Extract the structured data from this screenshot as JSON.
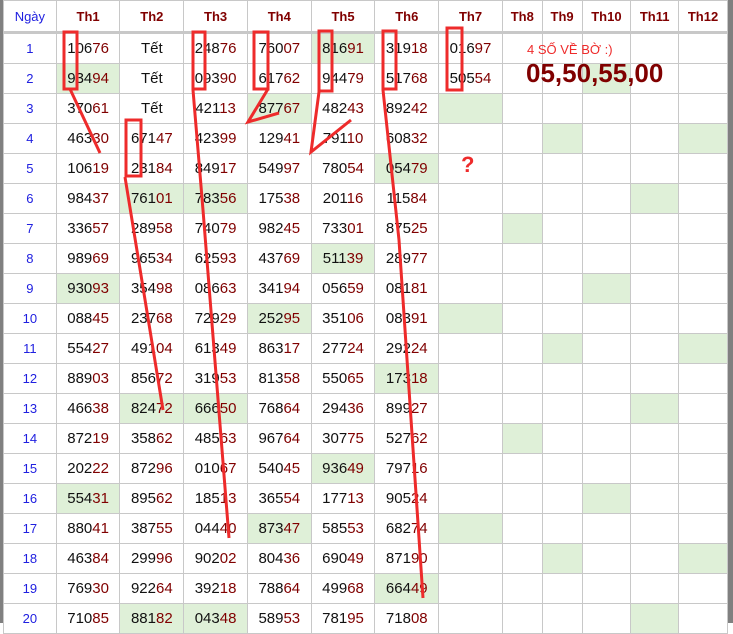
{
  "headers": [
    "Ngày",
    "Th1",
    "Th2",
    "Th3",
    "Th4",
    "Th5",
    "Th6",
    "Th7",
    "Th8",
    "Th9",
    "Th10",
    "Th11",
    "Th12"
  ],
  "rows": [
    {
      "day": "1",
      "cells": [
        "10676",
        "Tết",
        "24876",
        "76007",
        "81691",
        "31918",
        "01697",
        "",
        "",
        "",
        "",
        ""
      ],
      "green": [
        5
      ]
    },
    {
      "day": "2",
      "cells": [
        "93494",
        "Tết",
        "09390",
        "61762",
        "94479",
        "51768",
        "50554",
        "",
        "",
        "",
        "",
        ""
      ],
      "green": [
        1,
        10
      ]
    },
    {
      "day": "3",
      "cells": [
        "37061",
        "Tết",
        "42113",
        "87767",
        "48243",
        "89242",
        "",
        "",
        "",
        "",
        "",
        ""
      ],
      "green": [
        4,
        7
      ]
    },
    {
      "day": "4",
      "cells": [
        "46330",
        "67147",
        "42399",
        "12941",
        "79110",
        "60832",
        "",
        "",
        "",
        "",
        "",
        ""
      ],
      "green": [
        9,
        12
      ]
    },
    {
      "day": "5",
      "cells": [
        "10619",
        "23184",
        "84917",
        "54997",
        "78054",
        "05479",
        "",
        "",
        "",
        "",
        "",
        ""
      ],
      "green": [
        6
      ]
    },
    {
      "day": "6",
      "cells": [
        "98437",
        "76101",
        "78356",
        "17538",
        "20116",
        "11584",
        "",
        "",
        "",
        "",
        "",
        ""
      ],
      "green": [
        2,
        3,
        11
      ]
    },
    {
      "day": "7",
      "cells": [
        "33657",
        "28958",
        "74079",
        "98245",
        "73301",
        "87525",
        "",
        "",
        "",
        "",
        "",
        ""
      ],
      "green": [
        8
      ]
    },
    {
      "day": "8",
      "cells": [
        "98969",
        "96534",
        "62593",
        "43769",
        "51139",
        "28977",
        "",
        "",
        "",
        "",
        "",
        ""
      ],
      "green": [
        5
      ]
    },
    {
      "day": "9",
      "cells": [
        "93093",
        "35498",
        "08663",
        "34194",
        "05659",
        "08181",
        "",
        "",
        "",
        "",
        "",
        ""
      ],
      "green": [
        1,
        10
      ]
    },
    {
      "day": "10",
      "cells": [
        "08845",
        "23768",
        "72929",
        "25295",
        "35106",
        "08391",
        "",
        "",
        "",
        "",
        "",
        ""
      ],
      "green": [
        4,
        7
      ]
    },
    {
      "day": "11",
      "cells": [
        "55427",
        "49104",
        "61349",
        "86317",
        "27724",
        "29224",
        "",
        "",
        "",
        "",
        "",
        ""
      ],
      "green": [
        9,
        12
      ]
    },
    {
      "day": "12",
      "cells": [
        "88903",
        "85672",
        "31953",
        "81358",
        "55065",
        "17318",
        "",
        "",
        "",
        "",
        "",
        ""
      ],
      "green": [
        6
      ]
    },
    {
      "day": "13",
      "cells": [
        "46638",
        "82472",
        "66650",
        "76864",
        "29436",
        "89927",
        "",
        "",
        "",
        "",
        "",
        ""
      ],
      "green": [
        2,
        3,
        11
      ]
    },
    {
      "day": "14",
      "cells": [
        "87219",
        "35862",
        "48563",
        "96764",
        "30775",
        "52762",
        "",
        "",
        "",
        "",
        "",
        ""
      ],
      "green": [
        8
      ]
    },
    {
      "day": "15",
      "cells": [
        "20222",
        "87296",
        "01067",
        "54045",
        "93649",
        "79716",
        "",
        "",
        "",
        "",
        "",
        ""
      ],
      "green": [
        5
      ]
    },
    {
      "day": "16",
      "cells": [
        "55431",
        "89562",
        "18513",
        "36554",
        "17713",
        "90524",
        "",
        "",
        "",
        "",
        "",
        ""
      ],
      "green": [
        1,
        10
      ]
    },
    {
      "day": "17",
      "cells": [
        "88041",
        "38755",
        "04440",
        "87347",
        "58553",
        "68274",
        "",
        "",
        "",
        "",
        "",
        ""
      ],
      "green": [
        4,
        7
      ]
    },
    {
      "day": "18",
      "cells": [
        "46384",
        "29996",
        "90202",
        "80436",
        "69049",
        "87190",
        "",
        "",
        "",
        "",
        "",
        ""
      ],
      "green": [
        9,
        12
      ]
    },
    {
      "day": "19",
      "cells": [
        "76930",
        "92264",
        "39218",
        "78864",
        "49968",
        "66449",
        "",
        "",
        "",
        "",
        "",
        ""
      ],
      "green": [
        6
      ]
    },
    {
      "day": "20",
      "cells": [
        "71085",
        "88182",
        "04348",
        "58953",
        "78195",
        "71808",
        "",
        "",
        "",
        "",
        "",
        ""
      ],
      "green": [
        2,
        3,
        11
      ]
    }
  ],
  "annotation": {
    "note": "4 SỐ VỀ BỜ :)",
    "numbers": "05,50,55,00",
    "question": "?"
  },
  "colors": {
    "highlight": "#dff0d8",
    "annotation": "#ee2b2b",
    "digits_tail": "#800000",
    "day": "#2020e0"
  }
}
